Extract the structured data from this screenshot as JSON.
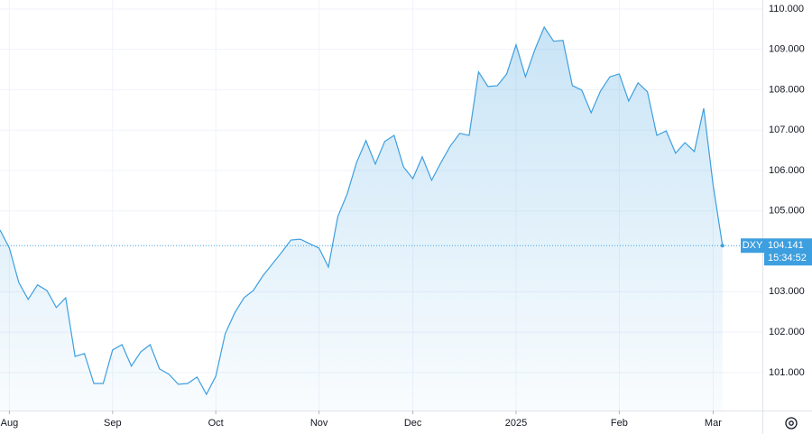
{
  "chart_data": {
    "type": "line",
    "categories": [
      null,
      "Aug",
      null,
      null,
      null,
      null,
      null,
      null,
      null,
      null,
      null,
      null,
      "Sep",
      null,
      null,
      null,
      null,
      null,
      null,
      null,
      null,
      null,
      null,
      "Oct",
      null,
      null,
      null,
      null,
      null,
      null,
      null,
      null,
      null,
      null,
      "Nov",
      null,
      null,
      null,
      null,
      null,
      null,
      null,
      null,
      null,
      "Dec",
      null,
      null,
      null,
      null,
      null,
      null,
      null,
      null,
      null,
      null,
      "2025",
      null,
      null,
      null,
      null,
      null,
      null,
      null,
      null,
      null,
      null,
      "Feb",
      null,
      null,
      null,
      null,
      null,
      null,
      null,
      null,
      null,
      "Mar",
      null
    ],
    "series": [
      {
        "name": "DXY",
        "color": "#3d9fdf",
        "values": [
          104.53,
          104.08,
          103.23,
          102.81,
          103.17,
          103.03,
          102.61,
          102.85,
          101.4,
          101.47,
          100.73,
          100.73,
          101.56,
          101.69,
          101.16,
          101.51,
          101.69,
          101.09,
          100.96,
          100.71,
          100.73,
          100.89,
          100.46,
          100.91,
          101.96,
          102.47,
          102.85,
          103.03,
          103.39,
          103.68,
          103.97,
          104.28,
          104.3,
          104.19,
          104.08,
          103.61,
          104.86,
          105.42,
          106.2,
          106.74,
          106.16,
          106.72,
          106.87,
          106.09,
          105.8,
          106.34,
          105.76,
          106.2,
          106.61,
          106.92,
          106.87,
          108.44,
          108.08,
          108.1,
          108.39,
          109.11,
          108.32,
          108.99,
          109.55,
          109.2,
          109.22,
          108.1,
          107.99,
          107.43,
          107.97,
          108.32,
          108.39,
          107.72,
          108.17,
          107.95,
          106.87,
          106.98,
          106.43,
          106.69,
          106.47,
          107.54,
          105.64,
          104.141
        ]
      }
    ],
    "last_time": "15:34:52",
    "ylim": [
      100.06,
      110.22
    ],
    "yticks": [
      {
        "value": 101,
        "label": "101.000"
      },
      {
        "value": 102,
        "label": "102.000"
      },
      {
        "value": 103,
        "label": "103.000"
      },
      {
        "value": 105,
        "label": "105.000"
      },
      {
        "value": 106,
        "label": "106.000"
      },
      {
        "value": 107,
        "label": "107.000"
      },
      {
        "value": 108,
        "label": "108.000"
      },
      {
        "value": 109,
        "label": "109.000"
      },
      {
        "value": 110,
        "label": "110.000"
      }
    ],
    "grid": true
  }
}
